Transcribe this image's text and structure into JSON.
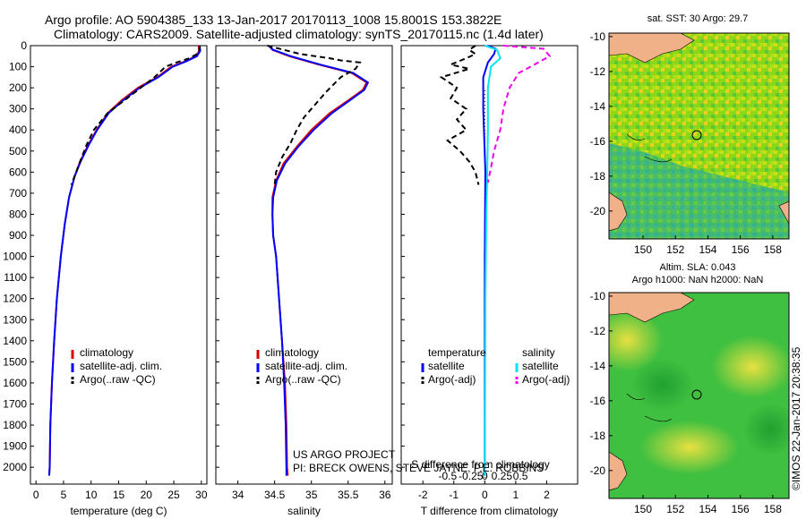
{
  "header": {
    "title_line1": "Argo profile: AO 5904385_133 13-Jan-2017 20170113_1008 15.8001S 153.3822E",
    "title_line2": "Climatology: CARS2009. Satellite-adjusted climatology: synTS_20170115.nc (1.4d later)"
  },
  "colors": {
    "climatology": "#dd0000",
    "satellite": "#0000ff",
    "argo": "#000000",
    "sat_salinity": "#00e5ee",
    "argo_salinity": "#ee00ee",
    "land": "#f0b088"
  },
  "chart_data": [
    {
      "id": "temperature",
      "type": "line",
      "xlabel": "temperature (deg C)",
      "ylabel": "",
      "xlim": [
        -1,
        31
      ],
      "ylim": [
        2080,
        0
      ],
      "xticks": [
        0,
        5,
        10,
        15,
        20,
        25,
        30
      ],
      "xticklabels": [
        "0",
        "5",
        "10",
        "15",
        "20",
        "25",
        "30"
      ],
      "yticks": [
        0,
        100,
        200,
        300,
        400,
        500,
        600,
        700,
        800,
        900,
        1000,
        1100,
        1200,
        1300,
        1400,
        1500,
        1600,
        1700,
        1800,
        1900,
        2000
      ],
      "legend": [
        "climatology",
        "satellite-adj. clim.",
        "Argo(..raw -QC)"
      ],
      "series": [
        {
          "name": "climatology",
          "style": "solid",
          "points": [
            [
              29.5,
              0
            ],
            [
              29.6,
              25
            ],
            [
              29,
              50
            ],
            [
              27,
              75
            ],
            [
              24.5,
              100
            ],
            [
              22,
              150
            ],
            [
              18.5,
              200
            ],
            [
              15.5,
              260
            ],
            [
              13,
              320
            ],
            [
              11,
              400
            ],
            [
              9.5,
              470
            ],
            [
              8,
              550
            ],
            [
              7,
              620
            ],
            [
              6,
              720
            ],
            [
              5.2,
              850
            ],
            [
              4.5,
              1000
            ],
            [
              3.8,
              1200
            ],
            [
              3.3,
              1400
            ],
            [
              2.9,
              1600
            ],
            [
              2.6,
              1800
            ],
            [
              2.5,
              2000
            ],
            [
              2.4,
              2040
            ]
          ]
        },
        {
          "name": "satellite-adj. clim.",
          "style": "solid",
          "points": [
            [
              29.7,
              0
            ],
            [
              29.8,
              25
            ],
            [
              29.2,
              50
            ],
            [
              27.2,
              75
            ],
            [
              24.8,
              100
            ],
            [
              22.2,
              150
            ],
            [
              18.8,
              200
            ],
            [
              15.8,
              260
            ],
            [
              13.2,
              320
            ],
            [
              11.1,
              400
            ],
            [
              9.6,
              470
            ],
            [
              8.1,
              550
            ],
            [
              7,
              620
            ],
            [
              6,
              720
            ],
            [
              5.2,
              850
            ],
            [
              4.5,
              1000
            ],
            [
              3.8,
              1200
            ],
            [
              3.3,
              1400
            ],
            [
              2.9,
              1600
            ],
            [
              2.6,
              1800
            ],
            [
              2.5,
              2000
            ],
            [
              2.4,
              2040
            ]
          ]
        },
        {
          "name": "Argo(..raw -QC)",
          "style": "dashed",
          "points": [
            [
              29.7,
              0
            ],
            [
              29.6,
              20
            ],
            [
              29.2,
              40
            ],
            [
              27.8,
              60
            ],
            [
              25.5,
              80
            ],
            [
              23.5,
              100
            ],
            [
              21.5,
              150
            ],
            [
              19,
              200
            ],
            [
              16,
              260
            ],
            [
              13,
              320
            ],
            [
              10.5,
              400
            ],
            [
              9.2,
              470
            ],
            [
              8,
              550
            ],
            [
              7,
              620
            ],
            [
              6.4,
              660
            ]
          ]
        }
      ]
    },
    {
      "id": "salinity",
      "type": "line",
      "xlabel": "salinity",
      "ylabel": "",
      "xlim": [
        33.7,
        36.1
      ],
      "ylim": [
        2080,
        0
      ],
      "xticks": [
        34,
        34.5,
        35,
        35.5,
        36
      ],
      "xticklabels": [
        "34",
        "34.5",
        "35",
        "35.5",
        "36"
      ],
      "legend": [
        "climatology",
        "satellite-adj. clim.",
        "Argo(..raw -QC)"
      ],
      "series": [
        {
          "name": "climatology",
          "style": "solid",
          "points": [
            [
              34.42,
              0
            ],
            [
              34.47,
              20
            ],
            [
              34.7,
              50
            ],
            [
              35.1,
              90
            ],
            [
              35.55,
              130
            ],
            [
              35.75,
              175
            ],
            [
              35.7,
              210
            ],
            [
              35.5,
              260
            ],
            [
              35.25,
              320
            ],
            [
              35,
              400
            ],
            [
              34.8,
              480
            ],
            [
              34.62,
              560
            ],
            [
              34.52,
              640
            ],
            [
              34.47,
              720
            ],
            [
              34.47,
              800
            ],
            [
              34.48,
              900
            ],
            [
              34.52,
              1000
            ],
            [
              34.56,
              1200
            ],
            [
              34.6,
              1400
            ],
            [
              34.64,
              1600
            ],
            [
              34.66,
              1800
            ],
            [
              34.67,
              2000
            ],
            [
              34.68,
              2040
            ]
          ]
        },
        {
          "name": "satellite-adj. clim.",
          "style": "solid",
          "points": [
            [
              34.42,
              0
            ],
            [
              34.48,
              20
            ],
            [
              34.72,
              50
            ],
            [
              35.12,
              90
            ],
            [
              35.57,
              130
            ],
            [
              35.77,
              175
            ],
            [
              35.72,
              210
            ],
            [
              35.52,
              260
            ],
            [
              35.28,
              320
            ],
            [
              35.03,
              400
            ],
            [
              34.82,
              480
            ],
            [
              34.64,
              560
            ],
            [
              34.53,
              640
            ],
            [
              34.48,
              720
            ],
            [
              34.47,
              800
            ],
            [
              34.48,
              900
            ],
            [
              34.52,
              1000
            ],
            [
              34.56,
              1200
            ],
            [
              34.6,
              1400
            ],
            [
              34.63,
              1600
            ],
            [
              34.65,
              1800
            ],
            [
              34.66,
              2000
            ],
            [
              34.66,
              2040
            ]
          ]
        },
        {
          "name": "Argo(..raw -QC)",
          "style": "dashed",
          "points": [
            [
              34.4,
              0
            ],
            [
              34.85,
              40
            ],
            [
              35.25,
              60
            ],
            [
              35.4,
              70
            ],
            [
              35.66,
              80
            ],
            [
              35.6,
              110
            ],
            [
              35.4,
              150
            ],
            [
              35.2,
              220
            ],
            [
              35.05,
              280
            ],
            [
              34.9,
              340
            ],
            [
              34.8,
              400
            ],
            [
              34.72,
              460
            ],
            [
              34.6,
              530
            ],
            [
              34.52,
              600
            ],
            [
              34.5,
              660
            ]
          ]
        }
      ]
    },
    {
      "id": "difference",
      "type": "line",
      "xlabel": "T difference from climatology",
      "top_label": "S difference from climatology",
      "ylabel": "",
      "xlim": [
        -2.7,
        3.0
      ],
      "ylim": [
        2080,
        0
      ],
      "xticks": [
        -2,
        -1,
        0,
        1,
        2
      ],
      "xticklabels": [
        "-2",
        "-1",
        "0",
        "1",
        "2"
      ],
      "sxticklabels": [
        "-0.5",
        "-0.25",
        "0",
        "0.25",
        "0.5"
      ],
      "legend_temperature_header": "temperature",
      "legend_salinity_header": "salinity",
      "legend_temperature": [
        "satellite",
        "Argo(-adj)"
      ],
      "legend_salinity": [
        "satellite",
        "Argo(-adj)"
      ],
      "series": [
        {
          "name": "temperature satellite",
          "style": "solid",
          "points": [
            [
              0.1,
              0
            ],
            [
              0.35,
              15
            ],
            [
              0.3,
              40
            ],
            [
              0.1,
              80
            ],
            [
              -0.05,
              150
            ],
            [
              -0.05,
              300
            ],
            [
              0.02,
              600
            ],
            [
              0,
              1000
            ],
            [
              0,
              2040
            ]
          ]
        },
        {
          "name": "temperature Argo(-adj)",
          "style": "dashed",
          "points": [
            [
              -0.3,
              0
            ],
            [
              -0.5,
              20
            ],
            [
              -0.3,
              40
            ],
            [
              -0.6,
              60
            ],
            [
              -1.1,
              90
            ],
            [
              -0.5,
              110
            ],
            [
              -1.4,
              150
            ],
            [
              -0.9,
              200
            ],
            [
              -1.1,
              250
            ],
            [
              -0.6,
              300
            ],
            [
              -0.9,
              350
            ],
            [
              -0.6,
              400
            ],
            [
              -1.2,
              450
            ],
            [
              -0.8,
              500
            ],
            [
              -0.5,
              550
            ],
            [
              -0.3,
              600
            ],
            [
              -0.2,
              660
            ]
          ]
        },
        {
          "name": "salinity satellite",
          "style": "solid",
          "points": [
            [
              0,
              0
            ],
            [
              0.4,
              20
            ],
            [
              0.5,
              60
            ],
            [
              0.2,
              100
            ],
            [
              0.1,
              200
            ],
            [
              0.1,
              400
            ],
            [
              0.08,
              600
            ],
            [
              0.05,
              800
            ],
            [
              0.02,
              1200
            ],
            [
              0,
              2040
            ]
          ]
        },
        {
          "name": "salinity Argo(-adj)",
          "style": "dashed",
          "points": [
            [
              0.6,
              0
            ],
            [
              1.9,
              15
            ],
            [
              2.1,
              50
            ],
            [
              1.6,
              90
            ],
            [
              1.1,
              130
            ],
            [
              0.8,
              200
            ],
            [
              0.6,
              300
            ],
            [
              0.5,
              400
            ],
            [
              0.3,
              500
            ],
            [
              0.2,
              580
            ],
            [
              0.1,
              650
            ]
          ]
        }
      ]
    },
    {
      "id": "sst_map",
      "type": "heatmap",
      "title": "sat. SST: 30 Argo: 29.7",
      "xticks": [
        150,
        152,
        154,
        156,
        158
      ],
      "yticks": [
        -10,
        -12,
        -14,
        -16,
        -18,
        -20
      ],
      "xlim": [
        147.9,
        159
      ],
      "ylim": [
        -21.6,
        -9.8
      ],
      "argo_position": [
        153.38,
        -15.8
      ]
    },
    {
      "id": "sla_map",
      "type": "heatmap",
      "title1": "Altim. SLA: 0.043",
      "title2": "Argo h1000: NaN h2000: NaN",
      "xticks": [
        150,
        152,
        154,
        156,
        158
      ],
      "yticks": [
        -10,
        -12,
        -14,
        -16,
        -18,
        -20
      ],
      "xlim": [
        147.9,
        159
      ],
      "ylim": [
        -21.6,
        -9.8
      ],
      "argo_position": [
        153.38,
        -15.8
      ]
    }
  ],
  "project": {
    "line1": "US ARGO PROJECT",
    "line2": "PI: BRECK OWENS, STEVE JAYNE, P.E. ROBBINS"
  },
  "stamp": "©IMOS 22-Jan-2017 20:38:35"
}
